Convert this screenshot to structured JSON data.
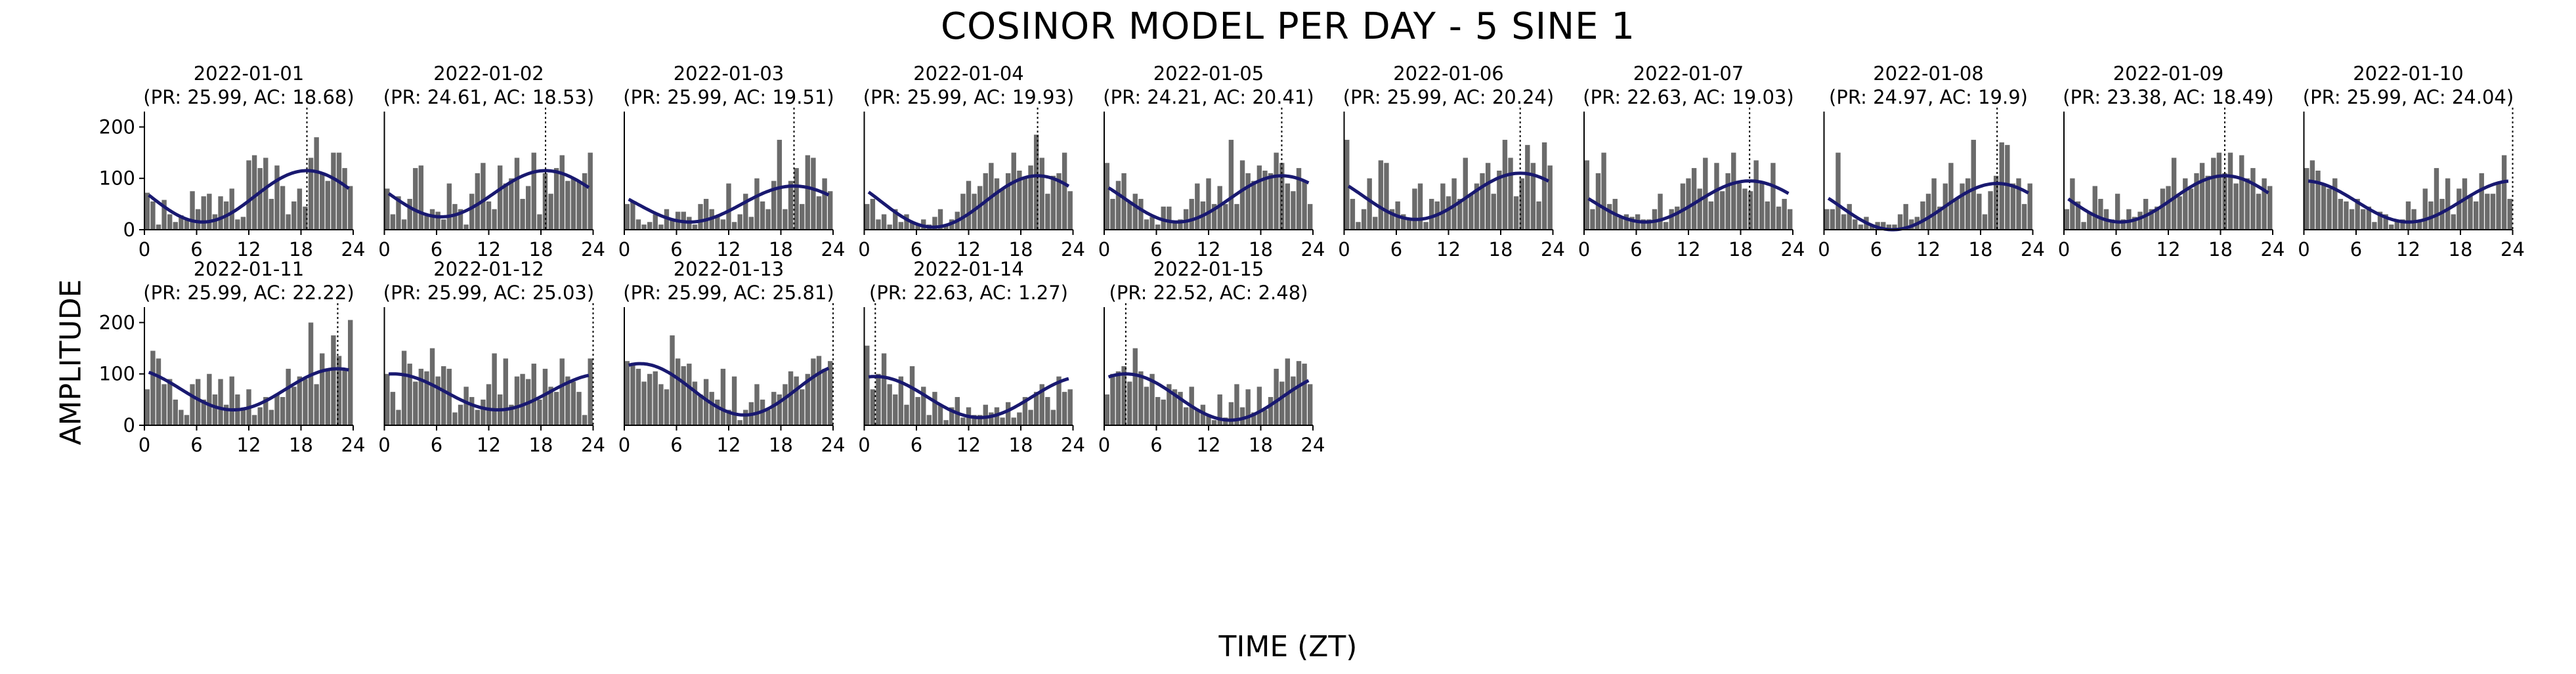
{
  "figure": {
    "title": "COSINOR MODEL PER DAY - 5 SINE 1",
    "xlabel": "TIME (ZT)",
    "ylabel": "AMPLITUDE"
  },
  "colors": {
    "bar": "#6b6b6b",
    "curve": "#191970",
    "acrophase_line": "#000000"
  },
  "chart_data": [
    {
      "type": "bar",
      "title": "2022-01-01",
      "subtitle": "(PR: 25.99, AC: 18.68)",
      "mesor": 65,
      "amplitude": 50,
      "acrophase": 18.68,
      "xticks": [
        0,
        6,
        12,
        18,
        24
      ],
      "yticks": [
        0,
        100,
        200
      ],
      "xlim": [
        0,
        24
      ],
      "ylim": [
        0,
        230
      ],
      "values": [
        72,
        55,
        10,
        58,
        30,
        15,
        28,
        22,
        75,
        40,
        65,
        70,
        30,
        65,
        55,
        80,
        20,
        25,
        135,
        145,
        120,
        140,
        60,
        125,
        85,
        30,
        55,
        80,
        45,
        140,
        180,
        110,
        95,
        150,
        150,
        120,
        85
      ]
    },
    {
      "type": "bar",
      "title": "2022-01-02",
      "subtitle": "(PR: 24.61, AC: 18.53)",
      "mesor": 70,
      "amplitude": 45,
      "acrophase": 18.53,
      "xticks": [
        0,
        6,
        12,
        18,
        24
      ],
      "yticks": [
        0,
        100,
        200
      ],
      "xlim": [
        0,
        24
      ],
      "ylim": [
        0,
        230
      ],
      "values": [
        80,
        30,
        65,
        20,
        60,
        120,
        125,
        30,
        40,
        35,
        20,
        90,
        50,
        40,
        10,
        70,
        110,
        130,
        55,
        40,
        125,
        90,
        100,
        140,
        60,
        85,
        150,
        30,
        110,
        70,
        120,
        145,
        95,
        100,
        95,
        110,
        150
      ]
    },
    {
      "type": "bar",
      "title": "2022-01-03",
      "subtitle": "(PR: 25.99, AC: 19.51)",
      "mesor": 50,
      "amplitude": 35,
      "acrophase": 19.51,
      "xticks": [
        0,
        6,
        12,
        18,
        24
      ],
      "yticks": [
        0,
        100,
        200
      ],
      "xlim": [
        0,
        24
      ],
      "ylim": [
        0,
        230
      ],
      "values": [
        50,
        55,
        20,
        10,
        15,
        30,
        10,
        40,
        20,
        35,
        35,
        25,
        10,
        50,
        60,
        40,
        25,
        20,
        90,
        15,
        30,
        70,
        25,
        100,
        55,
        40,
        95,
        175,
        40,
        95,
        120,
        50,
        145,
        140,
        65,
        100,
        75
      ]
    },
    {
      "type": "bar",
      "title": "2022-01-04",
      "subtitle": "(PR: 25.99, AC: 19.93)",
      "mesor": 55,
      "amplitude": 50,
      "acrophase": 19.93,
      "xticks": [
        0,
        6,
        12,
        18,
        24
      ],
      "yticks": [
        0,
        100,
        200
      ],
      "xlim": [
        0,
        24
      ],
      "ylim": [
        0,
        230
      ],
      "values": [
        50,
        60,
        20,
        30,
        10,
        40,
        15,
        30,
        15,
        10,
        20,
        10,
        25,
        40,
        10,
        20,
        35,
        70,
        95,
        70,
        85,
        110,
        130,
        100,
        80,
        110,
        150,
        115,
        100,
        125,
        185,
        140,
        70,
        105,
        110,
        150,
        75
      ]
    },
    {
      "type": "bar",
      "title": "2022-01-05",
      "subtitle": "(PR: 24.21, AC: 20.41)",
      "mesor": 60,
      "amplitude": 45,
      "acrophase": 20.41,
      "xticks": [
        0,
        6,
        12,
        18,
        24
      ],
      "yticks": [
        0,
        100,
        200
      ],
      "xlim": [
        0,
        24
      ],
      "ylim": [
        0,
        230
      ],
      "values": [
        130,
        60,
        95,
        110,
        55,
        70,
        60,
        20,
        25,
        10,
        45,
        45,
        15,
        20,
        40,
        60,
        90,
        55,
        100,
        50,
        85,
        50,
        175,
        50,
        135,
        110,
        95,
        125,
        115,
        110,
        150,
        130,
        90,
        75,
        120,
        95,
        50
      ]
    },
    {
      "type": "bar",
      "title": "2022-01-06",
      "subtitle": "(PR: 25.99, AC: 20.24)",
      "mesor": 65,
      "amplitude": 45,
      "acrophase": 20.24,
      "xticks": [
        0,
        6,
        12,
        18,
        24
      ],
      "yticks": [
        0,
        100,
        200
      ],
      "xlim": [
        0,
        24
      ],
      "ylim": [
        0,
        230
      ],
      "values": [
        175,
        60,
        15,
        40,
        100,
        25,
        135,
        130,
        40,
        55,
        30,
        20,
        80,
        90,
        15,
        60,
        55,
        90,
        65,
        100,
        60,
        140,
        70,
        90,
        110,
        130,
        70,
        115,
        175,
        140,
        65,
        100,
        165,
        130,
        55,
        170,
        125
      ]
    },
    {
      "type": "bar",
      "title": "2022-01-07",
      "subtitle": "(PR: 22.63, AC: 19.03)",
      "mesor": 55,
      "amplitude": 40,
      "acrophase": 19.03,
      "xticks": [
        0,
        6,
        12,
        18,
        24
      ],
      "yticks": [
        0,
        100,
        200
      ],
      "xlim": [
        0,
        24
      ],
      "ylim": [
        0,
        230
      ],
      "values": [
        135,
        40,
        110,
        150,
        50,
        60,
        25,
        30,
        25,
        30,
        20,
        20,
        40,
        70,
        15,
        40,
        45,
        90,
        100,
        120,
        80,
        140,
        55,
        130,
        75,
        110,
        150,
        90,
        80,
        75,
        135,
        90,
        55,
        130,
        45,
        60,
        40
      ]
    },
    {
      "type": "bar",
      "title": "2022-01-08",
      "subtitle": "(PR: 24.97, AC: 19.9)",
      "mesor": 45,
      "amplitude": 45,
      "acrophase": 19.9,
      "xticks": [
        0,
        6,
        12,
        18,
        24
      ],
      "yticks": [
        0,
        100,
        200
      ],
      "xlim": [
        0,
        24
      ],
      "ylim": [
        0,
        230
      ],
      "values": [
        40,
        40,
        150,
        30,
        50,
        20,
        10,
        25,
        10,
        15,
        15,
        10,
        10,
        30,
        50,
        20,
        25,
        55,
        70,
        100,
        45,
        90,
        130,
        60,
        90,
        100,
        175,
        70,
        30,
        75,
        105,
        170,
        165,
        90,
        100,
        50,
        90
      ]
    },
    {
      "type": "bar",
      "title": "2022-01-09",
      "subtitle": "(PR: 23.38, AC: 18.49)",
      "mesor": 60,
      "amplitude": 45,
      "acrophase": 18.49,
      "xticks": [
        0,
        6,
        12,
        18,
        24
      ],
      "yticks": [
        0,
        100,
        200
      ],
      "xlim": [
        0,
        24
      ],
      "ylim": [
        0,
        230
      ],
      "values": [
        40,
        100,
        55,
        15,
        35,
        85,
        60,
        40,
        20,
        70,
        20,
        40,
        25,
        35,
        60,
        40,
        45,
        80,
        85,
        140,
        65,
        100,
        80,
        110,
        130,
        105,
        140,
        150,
        110,
        150,
        90,
        145,
        100,
        120,
        70,
        100,
        85
      ]
    },
    {
      "type": "bar",
      "title": "2022-01-10",
      "subtitle": "(PR: 25.99, AC: 24.04)",
      "mesor": 55,
      "amplitude": 40,
      "acrophase": 24.04,
      "xticks": [
        0,
        6,
        12,
        18,
        24
      ],
      "yticks": [
        0,
        100,
        200
      ],
      "xlim": [
        0,
        24
      ],
      "ylim": [
        0,
        230
      ],
      "values": [
        120,
        135,
        115,
        90,
        80,
        100,
        60,
        55,
        40,
        60,
        40,
        45,
        15,
        35,
        30,
        10,
        20,
        20,
        55,
        40,
        15,
        80,
        55,
        120,
        60,
        100,
        30,
        80,
        100,
        65,
        55,
        110,
        70,
        70,
        90,
        145,
        60
      ]
    },
    {
      "type": "bar",
      "title": "2022-01-11",
      "subtitle": "(PR: 25.99, AC: 22.22)",
      "mesor": 70,
      "amplitude": 40,
      "acrophase": 22.22,
      "xticks": [
        0,
        6,
        12,
        18,
        24
      ],
      "yticks": [
        0,
        100,
        200
      ],
      "xlim": [
        0,
        24
      ],
      "ylim": [
        0,
        230
      ],
      "values": [
        70,
        145,
        130,
        80,
        90,
        50,
        30,
        20,
        80,
        90,
        50,
        100,
        60,
        90,
        40,
        95,
        60,
        30,
        70,
        20,
        35,
        55,
        30,
        60,
        55,
        110,
        75,
        95,
        90,
        200,
        80,
        140,
        110,
        175,
        135,
        110,
        205
      ]
    },
    {
      "type": "bar",
      "title": "2022-01-12",
      "subtitle": "(PR: 25.99, AC: 25.03)",
      "mesor": 65,
      "amplitude": 35,
      "acrophase": 25.03,
      "xticks": [
        0,
        6,
        12,
        18,
        24
      ],
      "yticks": [
        0,
        100,
        200
      ],
      "xlim": [
        0,
        24
      ],
      "ylim": [
        0,
        230
      ],
      "values": [
        100,
        65,
        30,
        145,
        120,
        85,
        110,
        105,
        150,
        95,
        115,
        110,
        25,
        40,
        75,
        55,
        30,
        50,
        80,
        140,
        60,
        130,
        40,
        95,
        100,
        90,
        120,
        50,
        110,
        75,
        65,
        130,
        95,
        85,
        65,
        20,
        130
      ]
    },
    {
      "type": "bar",
      "title": "2022-01-13",
      "subtitle": "(PR: 25.99, AC: 25.81)",
      "mesor": 70,
      "amplitude": 50,
      "acrophase": 25.81,
      "xticks": [
        0,
        6,
        12,
        18,
        24
      ],
      "yticks": [
        0,
        100,
        200
      ],
      "xlim": [
        0,
        24
      ],
      "ylim": [
        0,
        230
      ],
      "values": [
        125,
        120,
        110,
        85,
        100,
        105,
        80,
        70,
        175,
        130,
        115,
        120,
        85,
        60,
        90,
        65,
        50,
        110,
        30,
        95,
        10,
        30,
        45,
        80,
        50,
        30,
        65,
        60,
        80,
        105,
        95,
        70,
        100,
        130,
        135,
        110,
        125
      ]
    },
    {
      "type": "bar",
      "title": "2022-01-14",
      "subtitle": "(PR: 22.63, AC: 1.27)",
      "mesor": 55,
      "amplitude": 40,
      "acrophase": 1.27,
      "xticks": [
        0,
        6,
        12,
        18,
        24
      ],
      "yticks": [
        0,
        100,
        200
      ],
      "xlim": [
        0,
        24
      ],
      "ylim": [
        0,
        230
      ],
      "values": [
        155,
        70,
        100,
        140,
        80,
        60,
        95,
        40,
        115,
        55,
        75,
        20,
        65,
        40,
        10,
        35,
        55,
        15,
        35,
        20,
        20,
        40,
        25,
        35,
        15,
        45,
        15,
        25,
        55,
        30,
        65,
        80,
        55,
        30,
        95,
        65,
        70
      ]
    },
    {
      "type": "bar",
      "title": "2022-01-15",
      "subtitle": "(PR: 22.52, AC: 2.48)",
      "mesor": 55,
      "amplitude": 45,
      "acrophase": 2.48,
      "xticks": [
        0,
        6,
        12,
        18,
        24
      ],
      "yticks": [
        0,
        100,
        200
      ],
      "xlim": [
        0,
        24
      ],
      "ylim": [
        0,
        230
      ],
      "values": [
        60,
        100,
        105,
        115,
        85,
        150,
        105,
        75,
        100,
        55,
        50,
        80,
        70,
        65,
        35,
        75,
        30,
        40,
        20,
        10,
        60,
        15,
        45,
        80,
        35,
        70,
        25,
        75,
        30,
        55,
        110,
        85,
        130,
        95,
        125,
        120,
        80
      ]
    }
  ]
}
